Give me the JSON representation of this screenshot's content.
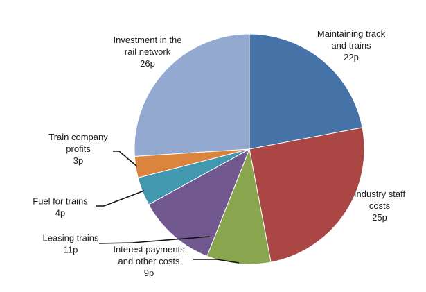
{
  "chart_data": {
    "type": "pie",
    "unit": "p",
    "start_angle_deg": 0,
    "direction": "clockwise",
    "slices": [
      {
        "label_lines": [
          "Maintaining track",
          "and trains"
        ],
        "value_text": "22p",
        "value": 22,
        "color": "#4572A7"
      },
      {
        "label_lines": [
          "Industry staff",
          "costs"
        ],
        "value_text": "25p",
        "value": 25,
        "color": "#AA4643"
      },
      {
        "label_lines": [
          "Interest payments",
          "and other costs"
        ],
        "value_text": "9p",
        "value": 9,
        "color": "#89A54E"
      },
      {
        "label_lines": [
          "Leasing trains"
        ],
        "value_text": "11p",
        "value": 11,
        "color": "#71588F"
      },
      {
        "label_lines": [
          "Fuel for trains"
        ],
        "value_text": "4p",
        "value": 4,
        "color": "#4198AF"
      },
      {
        "label_lines": [
          "Train company",
          "profits"
        ],
        "value_text": "3p",
        "value": 3,
        "color": "#DB843D"
      },
      {
        "label_lines": [
          "Investment in the",
          "rail network"
        ],
        "value_text": "26p",
        "value": 26,
        "color": "#93A9CF"
      }
    ]
  }
}
